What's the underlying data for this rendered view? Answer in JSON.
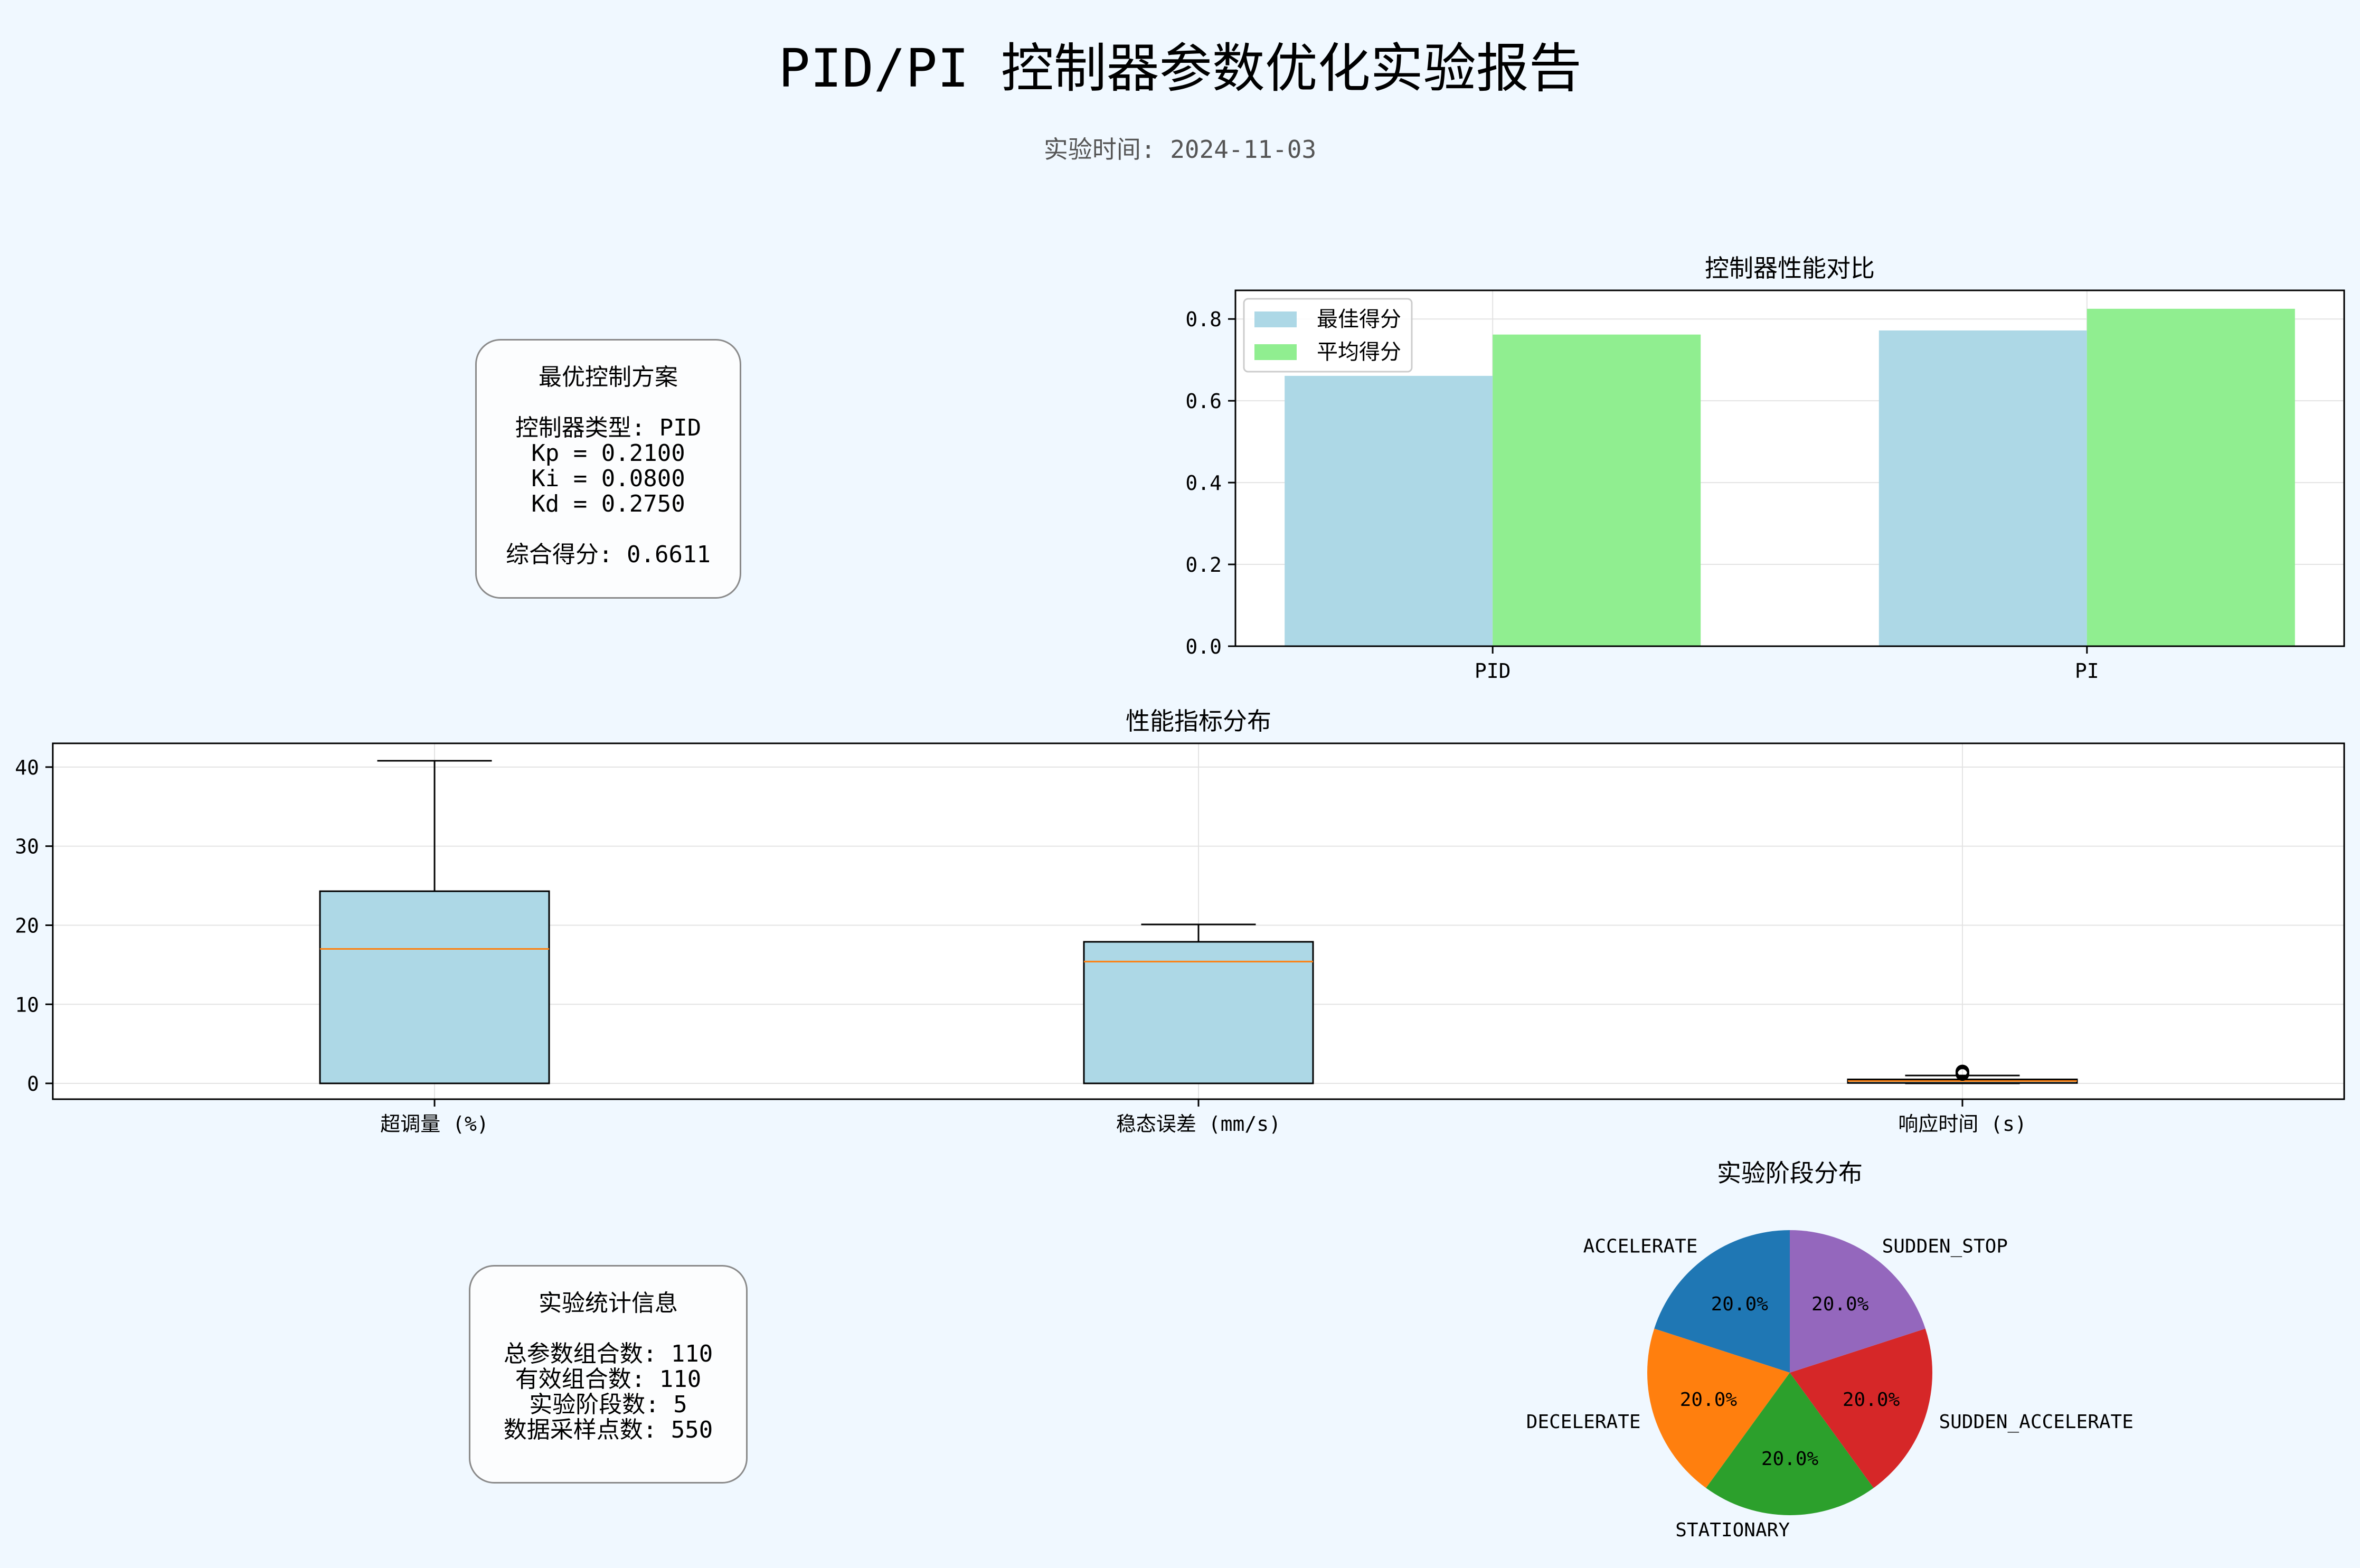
{
  "header": {
    "title": "PID/PI 控制器参数优化实验报告",
    "subtitle": "实验时间: 2024-11-03"
  },
  "best_box": {
    "title": "最优控制方案",
    "controller_type": "控制器类型: PID",
    "kp": "Kp = 0.2100",
    "ki": "Ki = 0.0800",
    "kd": "Kd = 0.2750",
    "score": "综合得分: 0.6611"
  },
  "stats_box": {
    "title": "实验统计信息",
    "total": "总参数组合数: 110",
    "valid": "有效组合数: 110",
    "stages": "实验阶段数: 5",
    "samples": "数据采样点数: 550"
  },
  "colors": {
    "best": "#add8e6",
    "avg": "#90ee90",
    "box_fill": "#add8e6",
    "median": "#ff7f0e",
    "pie": [
      "#1f77b4",
      "#ff7f0e",
      "#2ca02c",
      "#d62728",
      "#9467bd"
    ]
  },
  "chart_data": [
    {
      "type": "bar",
      "title": "控制器性能对比",
      "categories": [
        "PID",
        "PI"
      ],
      "series": [
        {
          "name": "最佳得分",
          "values": [
            0.661,
            0.772
          ]
        },
        {
          "name": "平均得分",
          "values": [
            0.762,
            0.825
          ]
        }
      ],
      "ylim": [
        0,
        0.87
      ],
      "yticks": [
        "0.0",
        "0.2",
        "0.4",
        "0.6",
        "0.8"
      ],
      "legend": "top-left",
      "grid": true
    },
    {
      "type": "box",
      "title": "性能指标分布",
      "categories": [
        "超调量 (%)",
        "稳态误差 (mm/s)",
        "响应时间 (s)"
      ],
      "boxes": [
        {
          "whislo": 0,
          "q1": 0,
          "med": 17.0,
          "q3": 24.3,
          "whishi": 40.8,
          "fliers": []
        },
        {
          "whislo": 0,
          "q1": 0,
          "med": 15.4,
          "q3": 17.9,
          "whishi": 20.1,
          "fliers": []
        },
        {
          "whislo": 0,
          "q1": 0.05,
          "med": 0.3,
          "q3": 0.5,
          "whishi": 1.0,
          "fliers": [
            1.2,
            1.4,
            1.5
          ]
        }
      ],
      "ylim": [
        -2,
        43
      ],
      "yticks": [
        "0",
        "10",
        "20",
        "30",
        "40"
      ],
      "grid": true
    },
    {
      "type": "pie",
      "title": "实验阶段分布",
      "labels": [
        "ACCELERATE",
        "DECELERATE",
        "STATIONARY",
        "SUDDEN_ACCELERATE",
        "SUDDEN_STOP"
      ],
      "values": [
        20.0,
        20.0,
        20.0,
        20.0,
        20.0
      ],
      "pct_labels": [
        "20.0%",
        "20.0%",
        "20.0%",
        "20.0%",
        "20.0%"
      ]
    }
  ]
}
